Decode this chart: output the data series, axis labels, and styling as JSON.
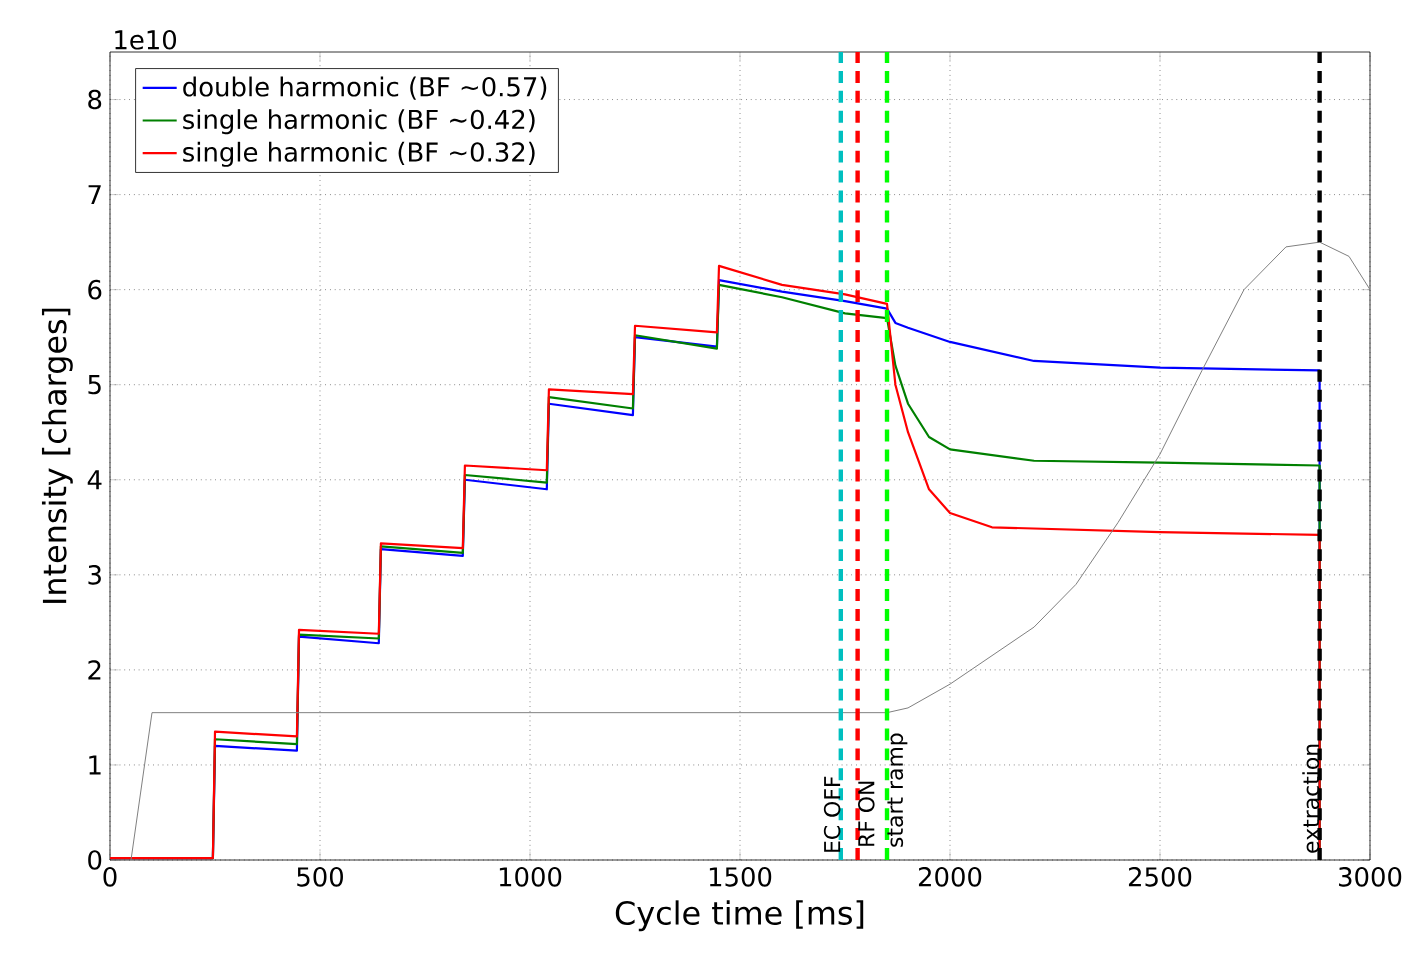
{
  "chart_data": {
    "type": "line",
    "xlabel": "Cycle time [ms]",
    "ylabel": "Intensity [charges]",
    "annotations": [
      "1e10"
    ],
    "xlim": [
      0,
      3000
    ],
    "ylim": [
      0,
      8.5
    ],
    "xticks": [
      0,
      500,
      1000,
      1500,
      2000,
      2500,
      3000
    ],
    "yticks": [
      0,
      1,
      2,
      3,
      4,
      5,
      6,
      7,
      8
    ],
    "grid": true,
    "legend": "top left",
    "line_style": "solid",
    "marker": "none",
    "series": [
      {
        "name": "double harmonic (BF ~0.57)",
        "color": "#0000ff",
        "x": [
          0,
          245,
          250,
          445,
          450,
          640,
          645,
          840,
          845,
          1040,
          1045,
          1245,
          1250,
          1445,
          1450,
          1600,
          1750,
          1850,
          1870,
          1900,
          2000,
          2200,
          2500,
          2880,
          2880
        ],
        "values": [
          0.02,
          0.02,
          1.2,
          1.15,
          2.35,
          2.28,
          3.27,
          3.2,
          4.0,
          3.9,
          4.8,
          4.68,
          5.5,
          5.4,
          6.1,
          5.98,
          5.88,
          5.8,
          5.65,
          5.6,
          5.45,
          5.25,
          5.18,
          5.15,
          0
        ]
      },
      {
        "name": "single harmonic (BF ~0.42)",
        "color": "#008000",
        "x": [
          0,
          245,
          250,
          445,
          450,
          640,
          645,
          840,
          845,
          1040,
          1045,
          1245,
          1250,
          1445,
          1450,
          1600,
          1750,
          1850,
          1870,
          1900,
          1950,
          2000,
          2200,
          2500,
          2880,
          2880
        ],
        "values": [
          0.02,
          0.02,
          1.27,
          1.22,
          2.37,
          2.33,
          3.3,
          3.23,
          4.05,
          3.97,
          4.87,
          4.75,
          5.52,
          5.38,
          6.05,
          5.92,
          5.75,
          5.7,
          5.2,
          4.8,
          4.45,
          4.32,
          4.2,
          4.18,
          4.15,
          0
        ]
      },
      {
        "name": "single harmonic (BF ~0.32)",
        "color": "#ff0000",
        "x": [
          0,
          245,
          250,
          445,
          450,
          640,
          645,
          840,
          845,
          1040,
          1045,
          1245,
          1250,
          1445,
          1450,
          1600,
          1750,
          1850,
          1870,
          1900,
          1950,
          2000,
          2100,
          2500,
          2880,
          2880
        ],
        "values": [
          0.02,
          0.02,
          1.35,
          1.3,
          2.42,
          2.38,
          3.33,
          3.28,
          4.15,
          4.1,
          4.95,
          4.9,
          5.62,
          5.55,
          6.25,
          6.05,
          5.95,
          5.85,
          5.0,
          4.5,
          3.9,
          3.65,
          3.5,
          3.45,
          3.42,
          0
        ]
      },
      {
        "color": "#808080",
        "x": [
          50,
          100,
          1850,
          1900,
          2000,
          2100,
          2200,
          2300,
          2400,
          2500,
          2600,
          2700,
          2800,
          2880,
          2950,
          3000
        ],
        "values": [
          0,
          1.55,
          1.55,
          1.6,
          1.85,
          2.15,
          2.45,
          2.9,
          3.55,
          4.27,
          5.15,
          6.0,
          6.45,
          6.5,
          6.35,
          6.0
        ]
      }
    ],
    "ref_lines": [
      {
        "axis": "x",
        "value": 1740,
        "label": "EC OFF",
        "color": "#00bfbf",
        "line_style": "dashed"
      },
      {
        "axis": "x",
        "value": 1780,
        "label": "RF ON",
        "color": "#ff0000",
        "line_style": "dashed"
      },
      {
        "axis": "x",
        "value": 1850,
        "label": "start ramp",
        "color": "#00ff00",
        "line_style": "dashed"
      },
      {
        "axis": "x",
        "value": 2880,
        "label": "extraction",
        "color": "#000000",
        "line_style": "dashed"
      }
    ]
  }
}
